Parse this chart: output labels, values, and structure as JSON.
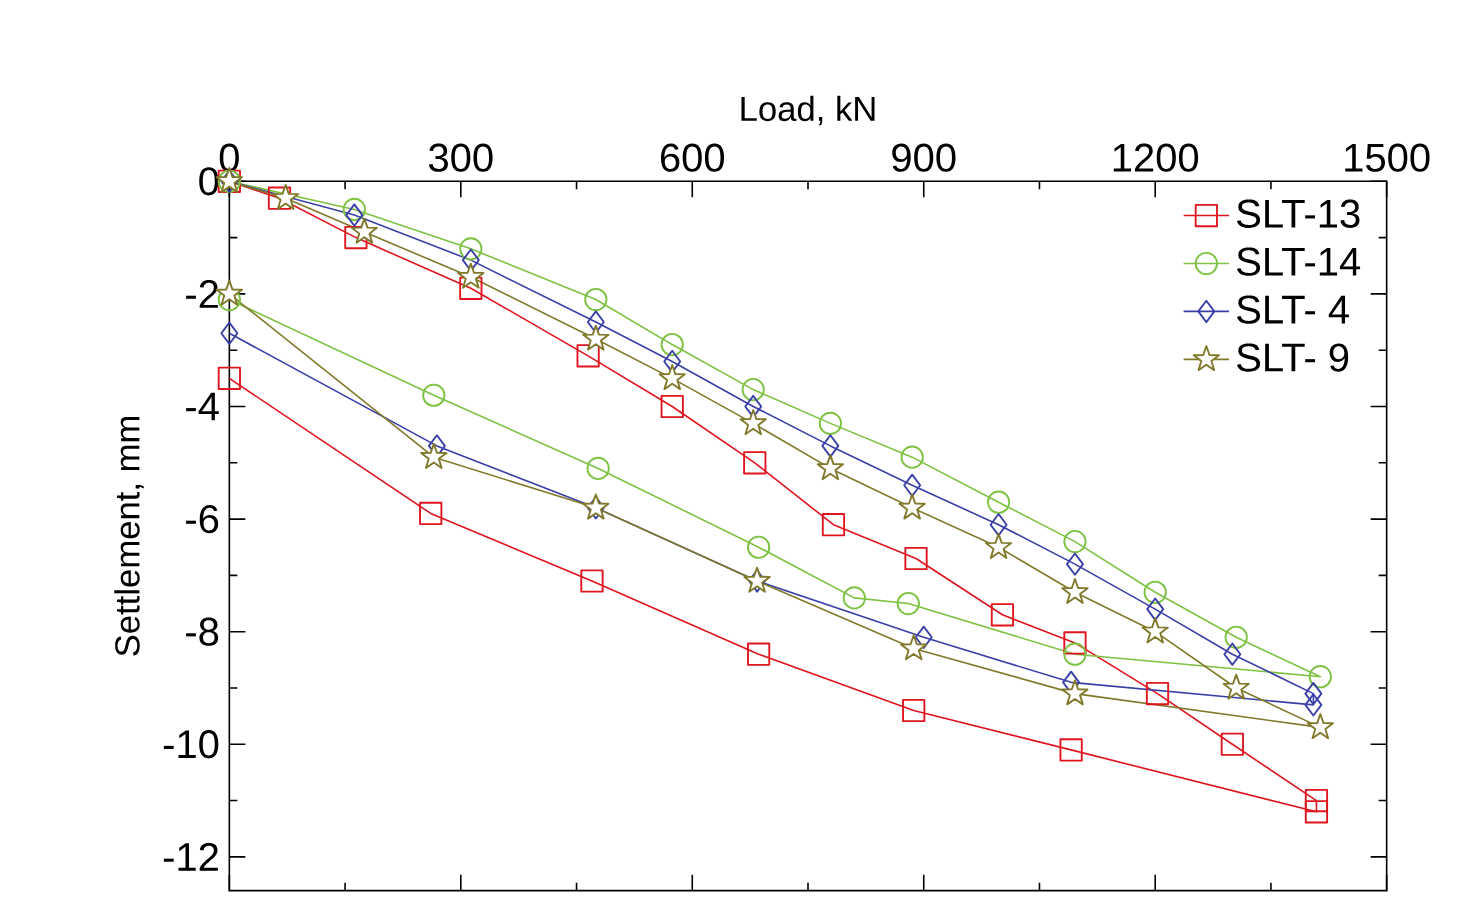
{
  "chart_data": {
    "type": "line",
    "xlabel": "Load, kN",
    "ylabel": "Settlement, mm",
    "xlim": [
      0,
      1500
    ],
    "xticks": [
      0,
      300,
      600,
      900,
      1200,
      1500
    ],
    "ylim": [
      -12.6,
      0
    ],
    "yticks": [
      0,
      -2,
      -4,
      -6,
      -8,
      -10,
      -12
    ],
    "legend": "top right",
    "grid": false,
    "series": [
      {
        "name": "SLT-13",
        "color": "#e0141e",
        "marker": "square",
        "x": [
          0,
          65,
          164,
          313,
          465,
          574,
          681,
          783,
          890,
          1002,
          1096,
          1203,
          1300,
          1409,
          1409,
          1091,
          887,
          686,
          470,
          261,
          0
        ],
        "values": [
          0,
          -0.3,
          -1.0,
          -1.9,
          -3.1,
          -4.0,
          -5.0,
          -6.1,
          -6.7,
          -7.7,
          -8.2,
          -9.1,
          -10.0,
          -11.0,
          -11.2,
          -10.1,
          -9.4,
          -8.4,
          -7.1,
          -5.9,
          -3.5
        ]
      },
      {
        "name": "SLT-14",
        "color": "#7dc242",
        "marker": "circle",
        "x": [
          0,
          162,
          313,
          475,
          574,
          679,
          779,
          885,
          997,
          1096,
          1200,
          1305,
          1414,
          1096,
          880,
          810,
          686,
          478,
          265,
          0
        ],
        "values": [
          0,
          -0.5,
          -1.2,
          -2.1,
          -2.9,
          -3.7,
          -4.3,
          -4.9,
          -5.7,
          -6.4,
          -7.3,
          -8.1,
          -8.8,
          -8.4,
          -7.5,
          -7.4,
          -6.5,
          -5.1,
          -3.8,
          -2.1
        ]
      },
      {
        "name": "SLT- 4",
        "color": "#3a3fa8",
        "marker": "diamond",
        "x": [
          0,
          162,
          313,
          475,
          574,
          679,
          779,
          885,
          997,
          1096,
          1200,
          1300,
          1405,
          1405,
          1091,
          900,
          684,
          475,
          269,
          0
        ],
        "values": [
          0,
          -0.6,
          -1.4,
          -2.5,
          -3.2,
          -4.0,
          -4.7,
          -5.4,
          -6.1,
          -6.8,
          -7.6,
          -8.4,
          -9.1,
          -9.3,
          -8.9,
          -8.1,
          -7.1,
          -5.8,
          -4.7,
          -2.7
        ]
      },
      {
        "name": "SLT- 9",
        "color": "#80792a",
        "marker": "star",
        "x": [
          0,
          73,
          175,
          313,
          475,
          574,
          679,
          779,
          885,
          997,
          1096,
          1200,
          1305,
          1414,
          1096,
          887,
          684,
          475,
          265,
          0
        ],
        "values": [
          0,
          -0.3,
          -0.9,
          -1.7,
          -2.8,
          -3.5,
          -4.3,
          -5.1,
          -5.8,
          -6.5,
          -7.3,
          -8.0,
          -9.0,
          -9.7,
          -9.1,
          -8.3,
          -7.1,
          -5.8,
          -4.9,
          -2.0
        ]
      }
    ]
  }
}
